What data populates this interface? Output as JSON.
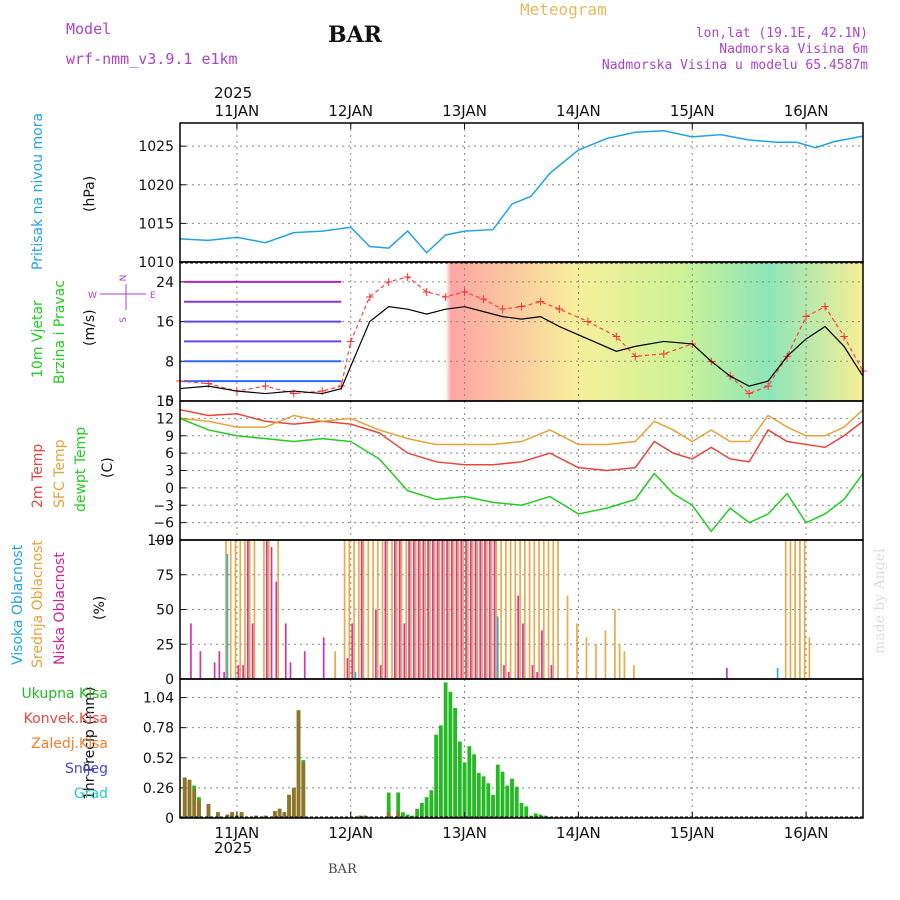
{
  "header": {
    "model_label": "Model",
    "model_name": "wrf-nmm_v3.9.1 e1km",
    "station": "BAR",
    "product": "Meteogram",
    "coords": "lon,lat (19.1E, 42.1N)",
    "elevation": "Nadmorska Visina 6m",
    "model_elevation": "Nadmorska Visina u modelu 65.4587m",
    "watermark": "made by Angel",
    "footer": "BAR"
  },
  "colors": {
    "pressure": "#1fa3e6",
    "temp2m": "#e8453c",
    "sfc_temp": "#e6a23c",
    "dewpoint": "#22cc22",
    "high_cloud": "#1fa3e6",
    "mid_cloud": "#e6a23c",
    "low_cloud": "#cc2299",
    "total_precip": "#22bb22",
    "conv_precip": "#e8453c",
    "frozen_precip": "#f07f28",
    "snow": "#4444dd",
    "hail": "#22cccc",
    "header_purple": "#aa44cc",
    "title_orange": "#e6b860",
    "watermark": "#dddddd"
  },
  "time_axis": {
    "year": "2025",
    "start": "2025-01-10T12:00",
    "end": "2025-01-16T12:00",
    "day_labels": [
      "11JAN",
      "12JAN",
      "13JAN",
      "14JAN",
      "15JAN",
      "16JAN"
    ],
    "day_hours": [
      12,
      36,
      60,
      84,
      108,
      132
    ]
  },
  "chart_data": [
    {
      "type": "line",
      "panel": "pressure",
      "ylabel_main": "Pritisak na nivou mora",
      "unit": "(hPa)",
      "ylim": [
        1010,
        1028
      ],
      "yticks": [
        1010,
        1015,
        1020,
        1025
      ],
      "grid": true,
      "series": [
        {
          "x": [
            0,
            6,
            12,
            18,
            24,
            30,
            36,
            40,
            44,
            48,
            52,
            56,
            60,
            66,
            70,
            74,
            78,
            84,
            90,
            96,
            102,
            108,
            114,
            120,
            126,
            130,
            134,
            138,
            144
          ],
          "y": [
            1013.0,
            1012.8,
            1013.2,
            1012.5,
            1013.8,
            1014.0,
            1014.5,
            1012.0,
            1011.8,
            1014.0,
            1011.2,
            1013.5,
            1014.0,
            1014.2,
            1017.5,
            1018.5,
            1021.5,
            1024.5,
            1026.0,
            1026.8,
            1027.0,
            1026.2,
            1026.5,
            1025.8,
            1025.5,
            1025.5,
            1024.8,
            1025.6,
            1026.3
          ]
        }
      ]
    },
    {
      "type": "line",
      "panel": "wind",
      "ylabel_main": "10m Vjetar",
      "ylabel_sub": "Brzina i Pravac",
      "unit": "(m/s)",
      "compass": [
        "N",
        "W",
        "E",
        "S"
      ],
      "ylim": [
        0,
        28
      ],
      "yticks": [
        0,
        8,
        16,
        24
      ],
      "grid": true,
      "series": [
        {
          "name": "speed",
          "x": [
            0,
            6,
            12,
            18,
            24,
            30,
            34,
            36,
            40,
            44,
            48,
            52,
            56,
            60,
            64,
            68,
            72,
            76,
            80,
            86,
            92,
            96,
            102,
            108,
            112,
            116,
            120,
            124,
            128,
            132,
            136,
            140,
            144
          ],
          "y": [
            2.5,
            3.0,
            2.0,
            1.5,
            2.0,
            1.5,
            2.5,
            7.0,
            16.0,
            19.0,
            18.5,
            17.5,
            18.5,
            19.0,
            18.0,
            17.0,
            16.5,
            17.0,
            15.0,
            12.5,
            10.0,
            11.0,
            12.0,
            11.5,
            8.0,
            5.0,
            3.0,
            4.0,
            9.0,
            12.5,
            15.0,
            11.0,
            5.0
          ]
        },
        {
          "name": "gust",
          "x": [
            0,
            6,
            12,
            18,
            24,
            30,
            34,
            36,
            40,
            44,
            48,
            52,
            56,
            60,
            64,
            68,
            72,
            76,
            80,
            86,
            92,
            96,
            102,
            108,
            112,
            116,
            120,
            124,
            128,
            132,
            136,
            140,
            144
          ],
          "y": [
            4.0,
            3.5,
            2.0,
            3.0,
            1.5,
            2.0,
            3.0,
            12.0,
            21.0,
            24.0,
            25.0,
            22.0,
            21.0,
            22.0,
            20.5,
            18.5,
            19.0,
            20.0,
            18.5,
            16.0,
            13.0,
            9.0,
            9.5,
            11.5,
            8.0,
            5.0,
            1.5,
            3.0,
            9.0,
            17.0,
            19.0,
            13.0,
            6.0
          ]
        }
      ]
    },
    {
      "type": "line",
      "panel": "temperature",
      "ylabel_red": "2m Temp",
      "ylabel_orange": "SFC Temp",
      "ylabel_green": "dewpt Temp",
      "unit": "(C)",
      "ylim": [
        -9,
        15
      ],
      "yticks": [
        -9,
        -6,
        -3,
        0,
        3,
        6,
        9,
        12,
        15
      ],
      "grid": true,
      "x": [
        0,
        6,
        12,
        18,
        24,
        30,
        36,
        42,
        48,
        54,
        60,
        66,
        72,
        78,
        84,
        90,
        96,
        100,
        104,
        108,
        112,
        116,
        120,
        124,
        128,
        132,
        136,
        140,
        144
      ],
      "series": [
        {
          "name": "2m Temp",
          "y": [
            13.5,
            12.5,
            12.8,
            11.5,
            11.0,
            11.5,
            11.0,
            9.5,
            6.0,
            4.5,
            4.0,
            4.0,
            4.5,
            6.0,
            3.5,
            3.0,
            3.5,
            8.0,
            6.0,
            5.0,
            7.0,
            5.0,
            4.5,
            10.0,
            8.0,
            7.5,
            7.0,
            9.0,
            11.5
          ]
        },
        {
          "name": "SFC Temp",
          "y": [
            12.0,
            11.5,
            10.5,
            10.5,
            12.5,
            11.5,
            12.0,
            10.0,
            8.5,
            7.5,
            7.5,
            7.5,
            8.0,
            10.0,
            7.5,
            7.5,
            8.0,
            11.5,
            10.0,
            8.0,
            10.0,
            8.0,
            8.0,
            12.5,
            10.5,
            9.0,
            9.0,
            10.5,
            13.5
          ]
        },
        {
          "name": "dewpt Temp",
          "y": [
            12.0,
            10.0,
            9.0,
            8.5,
            8.0,
            8.5,
            8.0,
            5.0,
            -0.5,
            -2.0,
            -1.5,
            -2.5,
            -3.0,
            -1.5,
            -4.5,
            -3.5,
            -2.0,
            2.5,
            -1.0,
            -3.0,
            -7.5,
            -3.5,
            -6.0,
            -4.5,
            -1.0,
            -6.0,
            -4.5,
            -2.0,
            2.5
          ]
        }
      ]
    },
    {
      "type": "bar",
      "panel": "clouds",
      "ylabel_high": "Visoka Oblacnost",
      "ylabel_mid": "Srednja Oblacnost",
      "ylabel_low": "Niska Oblacnost",
      "unit": "(%)",
      "ylim": [
        0,
        100
      ],
      "yticks": [
        0,
        25,
        50,
        75,
        100
      ],
      "grid": true,
      "x": [
        2,
        4,
        7,
        8,
        9,
        10,
        11,
        12,
        13,
        14,
        15,
        16,
        18,
        19,
        20,
        21,
        22,
        23,
        24,
        26,
        30,
        33,
        35,
        36,
        37,
        38,
        39,
        40,
        41,
        42,
        43,
        44,
        45,
        46,
        47,
        48,
        49,
        50,
        51,
        52,
        53,
        54,
        55,
        56,
        57,
        58,
        59,
        60,
        61,
        62,
        63,
        64,
        65,
        66,
        67,
        68,
        69,
        70,
        71,
        72,
        73,
        74,
        75,
        76,
        77,
        78,
        79,
        80,
        82,
        84,
        86,
        88,
        90,
        92,
        93,
        94,
        96,
        98,
        115,
        126,
        128,
        129,
        130,
        131,
        132,
        133
      ],
      "series": [
        {
          "name": "Visoka Oblacnost",
          "values": [
            0,
            0,
            0,
            0,
            0,
            90,
            0,
            0,
            0,
            0,
            0,
            0,
            0,
            0,
            0,
            0,
            0,
            0,
            0,
            0,
            0,
            0,
            0,
            0,
            5,
            0,
            0,
            0,
            0,
            0,
            0,
            0,
            0,
            0,
            0,
            0,
            0,
            0,
            0,
            0,
            0,
            0,
            0,
            0,
            0,
            0,
            0,
            0,
            0,
            0,
            0,
            0,
            0,
            0,
            45,
            0,
            0,
            0,
            0,
            0,
            0,
            0,
            0,
            0,
            0,
            0,
            0,
            0,
            0,
            0,
            0,
            0,
            0,
            0,
            0,
            0,
            0,
            0,
            0,
            8,
            0,
            0,
            0,
            0,
            0,
            0
          ]
        },
        {
          "name": "Srednja Oblacnost",
          "values": [
            0,
            0,
            0,
            0,
            0,
            100,
            100,
            100,
            100,
            100,
            100,
            100,
            100,
            100,
            0,
            100,
            0,
            0,
            0,
            0,
            0,
            20,
            100,
            100,
            100,
            100,
            100,
            100,
            100,
            100,
            100,
            100,
            100,
            100,
            100,
            100,
            100,
            100,
            100,
            100,
            100,
            100,
            100,
            100,
            100,
            100,
            100,
            100,
            100,
            100,
            100,
            100,
            100,
            100,
            100,
            100,
            100,
            100,
            100,
            100,
            100,
            100,
            100,
            100,
            100,
            100,
            100,
            100,
            60,
            40,
            30,
            25,
            35,
            50,
            25,
            20,
            10,
            0,
            0,
            0,
            100,
            100,
            100,
            100,
            100,
            30
          ]
        },
        {
          "name": "Niska Oblacnost",
          "values": [
            40,
            20,
            12,
            20,
            5,
            0,
            0,
            10,
            10,
            100,
            40,
            0,
            100,
            95,
            70,
            0,
            40,
            12,
            0,
            20,
            30,
            0,
            15,
            40,
            0,
            100,
            0,
            0,
            50,
            10,
            100,
            0,
            100,
            100,
            40,
            100,
            100,
            100,
            100,
            100,
            100,
            100,
            100,
            100,
            100,
            100,
            100,
            100,
            100,
            100,
            100,
            100,
            100,
            100,
            0,
            10,
            5,
            0,
            60,
            40,
            0,
            10,
            5,
            35,
            0,
            10,
            0,
            0,
            0,
            0,
            0,
            0,
            0,
            0,
            0,
            0,
            0,
            0,
            8,
            0,
            0,
            0,
            0,
            0,
            0,
            0
          ]
        }
      ]
    },
    {
      "type": "bar",
      "panel": "precip",
      "legend": [
        "Ukupna Kisa",
        "Konvek.Kisa",
        "Zaledj.Kisa",
        "Snijeg",
        "Grad"
      ],
      "ylabel": "1hr Precip (mm)",
      "ylim": [
        0,
        1.2
      ],
      "yticks": [
        0,
        0.26,
        0.52,
        0.78,
        1.04
      ],
      "grid": true,
      "x": [
        1,
        2,
        3,
        4,
        6,
        8,
        10,
        11,
        12,
        13,
        16,
        18,
        20,
        21,
        22,
        23,
        24,
        25,
        26,
        38,
        39,
        40,
        44,
        46,
        47,
        48,
        49,
        50,
        51,
        52,
        53,
        54,
        55,
        56,
        57,
        58,
        59,
        60,
        61,
        62,
        63,
        64,
        65,
        66,
        67,
        68,
        69,
        70,
        71,
        72,
        73,
        74,
        75,
        76,
        77,
        78
      ],
      "series": [
        {
          "name": "Ukupna Kisa",
          "values": [
            0.35,
            0.33,
            0.28,
            0.18,
            0.12,
            0.05,
            0.03,
            0.05,
            0.02,
            0.05,
            0.02,
            0.02,
            0.06,
            0.08,
            0.05,
            0.2,
            0.26,
            0.93,
            0.5,
            0.02,
            0.02,
            0.01,
            0.22,
            0.22,
            0.05,
            0.03,
            0.02,
            0.08,
            0.13,
            0.18,
            0.24,
            0.72,
            0.8,
            1.17,
            1.09,
            0.95,
            0.66,
            0.48,
            0.62,
            0.55,
            0.39,
            0.36,
            0.3,
            0.2,
            0.46,
            0.4,
            0.28,
            0.34,
            0.27,
            0.13,
            0.1,
            0.02,
            0.04,
            0.03,
            0.02,
            0.01
          ]
        },
        {
          "name": "Konvek.Kisa",
          "values": [
            0.35,
            0.33,
            0.25,
            0.15,
            0.12,
            0.05,
            0.03,
            0.05,
            0.02,
            0.05,
            0.02,
            0.02,
            0.06,
            0.08,
            0.05,
            0.2,
            0.26,
            0.93,
            0.48,
            0.02,
            0.02,
            0.01,
            0.05,
            0.05,
            0.01,
            0.01,
            0.01,
            0.01,
            0.01,
            0.02,
            0.01,
            0.01,
            0.01,
            0.02,
            0.01,
            0.01,
            0.01,
            0.01,
            0.01,
            0.01,
            0.01,
            0.01,
            0.01,
            0.01,
            0.01,
            0.01,
            0.01,
            0.01,
            0.01,
            0.01,
            0.01,
            0.0,
            0.0,
            0.0,
            0.0,
            0.0
          ]
        }
      ]
    }
  ]
}
